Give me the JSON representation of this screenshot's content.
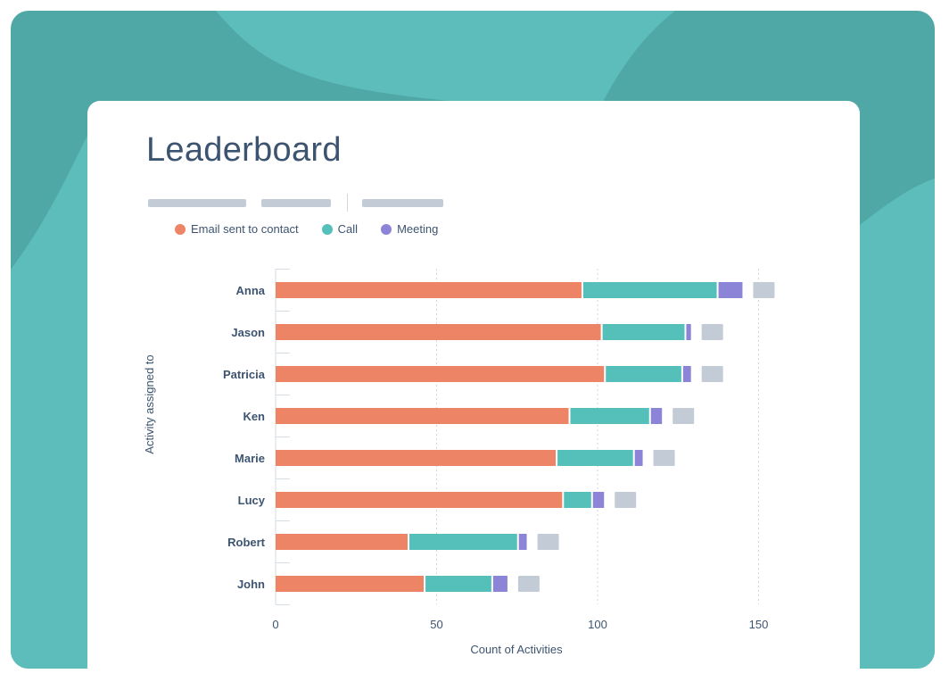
{
  "title": "Leaderboard",
  "colors": {
    "email": "#ee8466",
    "call": "#55bfba",
    "meeting": "#8b84d7",
    "total": "#c3ccd6",
    "frame": "#4fa8a6",
    "frame_light": "#5dbdbb",
    "title": "#3d5470"
  },
  "chart_data": {
    "type": "bar",
    "orientation": "horizontal",
    "stacked": true,
    "categories": [
      "Anna",
      "Jason",
      "Patricia",
      "Ken",
      "Marie",
      "Lucy",
      "Robert",
      "John"
    ],
    "series": [
      {
        "name": "Email sent to contact",
        "color": "#ee8466",
        "values": [
          95,
          101,
          102,
          91,
          87,
          89,
          41,
          46
        ]
      },
      {
        "name": "Call",
        "color": "#55bfba",
        "values": [
          42,
          26,
          24,
          25,
          24,
          9,
          34,
          21
        ]
      },
      {
        "name": "Meeting",
        "color": "#8b84d7",
        "values": [
          8,
          2,
          3,
          4,
          3,
          4,
          3,
          5
        ]
      }
    ],
    "xlabel": "Count of Activities",
    "ylabel": "Activity assigned to",
    "xlim": [
      0,
      165
    ],
    "xticks": [
      0,
      50,
      100,
      150
    ],
    "grid": "vertical-dashed",
    "legend": "top-left"
  }
}
